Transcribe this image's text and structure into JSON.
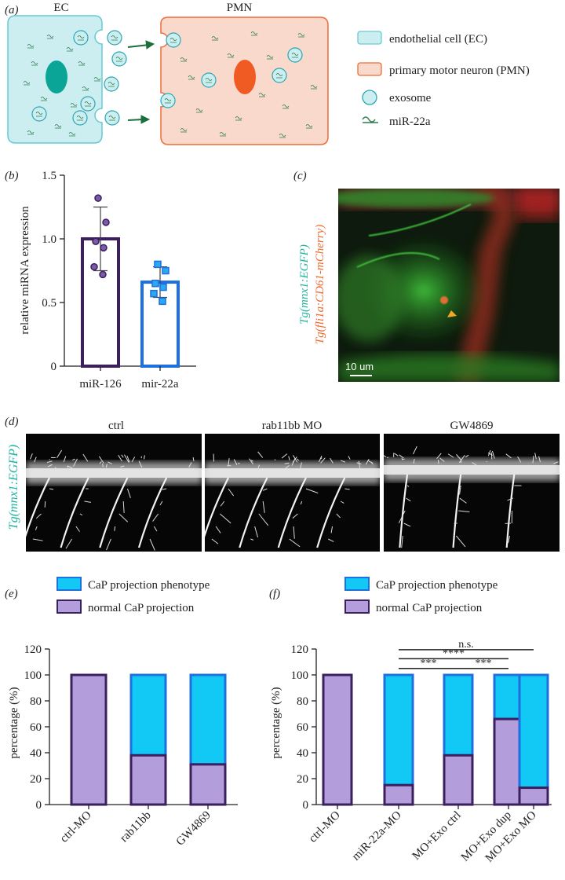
{
  "panels": {
    "a": "(a)",
    "b": "(b)",
    "c": "(c)",
    "d": "(d)",
    "e": "(e)",
    "f": "(f)"
  },
  "panel_a": {
    "ec_label": "EC",
    "pmn_label": "PMN",
    "legend": [
      {
        "label": "endothelial cell (EC)",
        "color": "#cdeef0"
      },
      {
        "label": "primary motor neuron (PMN)",
        "color": "#f9d9cb"
      },
      {
        "label": "exosome",
        "color": "#cdeef0"
      },
      {
        "label": "miR-22a",
        "color": "#2e7d4f"
      }
    ]
  },
  "panel_c": {
    "ylabel_green": "Tg(mnx1:EGFP)",
    "ylabel_red": "Tg(fli1a:CD61-mCherry)",
    "scalebar": "10 um"
  },
  "panel_d": {
    "ylabel": "Tg(mnx1:EGFP)",
    "images": [
      "ctrl",
      "rab11bb MO",
      "GW4869"
    ]
  },
  "colors": {
    "purple_fill": "#b39ddb",
    "purple_edge": "#3b1f5e",
    "cyan_fill": "#12c8f5",
    "blue_edge": "#1e6fe0",
    "ec_fill": "#cdeef0",
    "pmn_fill": "#f9d9cb"
  },
  "chart_data": [
    {
      "id": "b",
      "type": "bar",
      "categories": [
        "miR-126",
        "mir-22a"
      ],
      "values": [
        1.0,
        0.66
      ],
      "errors": [
        0.25,
        0.12
      ],
      "points": [
        [
          1.32,
          1.13,
          0.98,
          0.93,
          0.78,
          0.72
        ],
        [
          0.8,
          0.75,
          0.65,
          0.62,
          0.57,
          0.51
        ]
      ],
      "ylabel": "relative miRNA expression",
      "ylim": [
        0,
        1.5
      ],
      "yticks": [
        "0",
        "0.5",
        "1.0",
        "1.5"
      ]
    },
    {
      "id": "e",
      "type": "bar",
      "stacked": true,
      "categories": [
        "ctrl-MO",
        "rab11bb",
        "GW4869"
      ],
      "series": [
        {
          "name": "normal CaP projection",
          "values": [
            100,
            38,
            31
          ]
        },
        {
          "name": "CaP projection phenotype",
          "values": [
            0,
            62,
            69
          ]
        }
      ],
      "ylabel": "percentage (%)",
      "ylim": [
        0,
        120
      ],
      "yticks": [
        "0",
        "20",
        "40",
        "60",
        "80",
        "100",
        "120"
      ],
      "legend": [
        "CaP projection phenotype",
        "normal CaP projection"
      ]
    },
    {
      "id": "f",
      "type": "bar",
      "stacked": true,
      "categories": [
        "ctrl-MO",
        "miR-22a-MO",
        "MO+Exo ctrl",
        "MO+Exo dup",
        "MO+Exo MO"
      ],
      "series": [
        {
          "name": "normal CaP projection",
          "values": [
            100,
            15,
            38,
            66,
            13
          ]
        },
        {
          "name": "CaP projection phenotype",
          "values": [
            0,
            85,
            62,
            34,
            87
          ]
        }
      ],
      "ylabel": "percentage (%)",
      "ylim": [
        0,
        120
      ],
      "yticks": [
        "0",
        "20",
        "40",
        "60",
        "80",
        "100",
        "120"
      ],
      "legend": [
        "CaP projection phenotype",
        "normal CaP projection"
      ],
      "significance": [
        {
          "from": 1,
          "to": 4,
          "label": "n.s."
        },
        {
          "from": 1,
          "to": 3,
          "label": "****"
        },
        {
          "from": 1,
          "to": 2,
          "label": "***"
        },
        {
          "from": 2,
          "to": 3,
          "label": "***"
        }
      ]
    }
  ]
}
